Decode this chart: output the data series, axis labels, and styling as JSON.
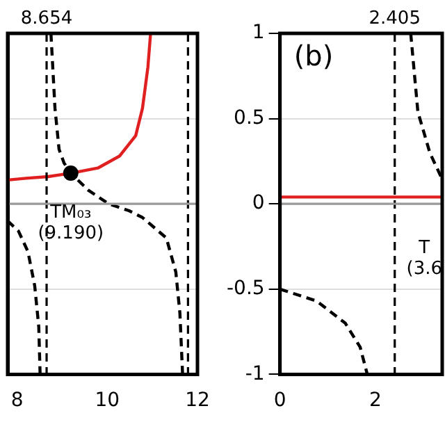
{
  "chart_data": [
    {
      "type": "line",
      "xlim": [
        7.79,
        12
      ],
      "xticks": [
        8,
        10,
        12
      ],
      "ylim": [
        -1,
        1
      ],
      "yticks": [
        -1,
        -0.5,
        0,
        0.5,
        1
      ],
      "tick_labels": "x",
      "grid": "y",
      "legend": false,
      "series": [
        {
          "type": "line",
          "color": "#e02020",
          "line_style": "solid",
          "marker": "none",
          "x": [
            7.79,
            8.2,
            8.69,
            9.19,
            9.79,
            10.27,
            10.63,
            10.78,
            10.9,
            10.96
          ],
          "values": [
            0.14,
            0.15,
            0.16,
            0.18,
            0.21,
            0.28,
            0.4,
            0.56,
            0.8,
            1
          ]
        },
        {
          "type": "line",
          "color": "#000000",
          "line_style": "dashed",
          "marker": "none",
          "x": [
            7.79,
            8.03,
            8.24,
            8.39,
            8.48,
            8.51
          ],
          "values": [
            -0.1,
            -0.16,
            -0.28,
            -0.48,
            -0.72,
            -1
          ]
        },
        {
          "type": "line",
          "color": "#000000",
          "line_style": "dashed",
          "marker": "none",
          "x": [
            8.75,
            8.84,
            8.93,
            9.04,
            9.19,
            9.58,
            10.03,
            10.48,
            10.78,
            11.31,
            11.52,
            11.61,
            11.67
          ],
          "values": [
            1,
            0.56,
            0.32,
            0.24,
            0.18,
            0.08,
            0,
            -0.04,
            -0.08,
            -0.2,
            -0.4,
            -0.64,
            -1
          ]
        },
        {
          "type": "scatter",
          "color": "#000000",
          "marker": "circle",
          "x": [
            9.19
          ],
          "values": [
            0.18
          ]
        }
      ],
      "ref_lines": [
        {
          "axis": "x",
          "value": 8.654,
          "label": "8.654",
          "color": "#000000",
          "line_style": "dashed"
        },
        {
          "axis": "x",
          "value": 11.79,
          "color": "#000000",
          "line_style": "dashed"
        },
        {
          "axis": "y",
          "value": 0,
          "color": "#999999",
          "line_style": "solid"
        }
      ],
      "annotations": [
        {
          "text": "TM₀₃\n(9.190)",
          "x": 9.19,
          "y": 0.18
        }
      ]
    },
    {
      "type": "line",
      "xlim": [
        0,
        3.4
      ],
      "xticks": [
        0,
        2
      ],
      "ylim": [
        -1,
        1
      ],
      "yticks": [
        -1,
        -0.5,
        0,
        0.5,
        1
      ],
      "grid": "y",
      "legend": false,
      "series": [
        {
          "type": "line",
          "color": "#e02020",
          "line_style": "solid",
          "marker": "none",
          "x": [
            0,
            3.4
          ],
          "values": [
            0.04,
            0.04
          ]
        },
        {
          "type": "line",
          "color": "#000000",
          "line_style": "dashed",
          "marker": "none",
          "x": [
            0,
            0.77,
            1.37,
            1.68,
            1.83
          ],
          "values": [
            -0.5,
            -0.57,
            -0.7,
            -0.84,
            -1
          ]
        },
        {
          "type": "line",
          "color": "#000000",
          "line_style": "dashed",
          "marker": "none",
          "x": [
            2.74,
            2.89,
            3.14,
            3.39
          ],
          "values": [
            1,
            0.54,
            0.3,
            0.15
          ]
        }
      ],
      "ref_lines": [
        {
          "axis": "x",
          "value": 2.405,
          "label": "2.405",
          "color": "#000000",
          "line_style": "dashed"
        },
        {
          "axis": "y",
          "value": 0,
          "color": "#999999",
          "line_style": "solid"
        }
      ],
      "annotations": [
        "(b)",
        {
          "text": "T\n(3.6",
          "x": 3.3,
          "y": -0.03
        }
      ]
    }
  ]
}
